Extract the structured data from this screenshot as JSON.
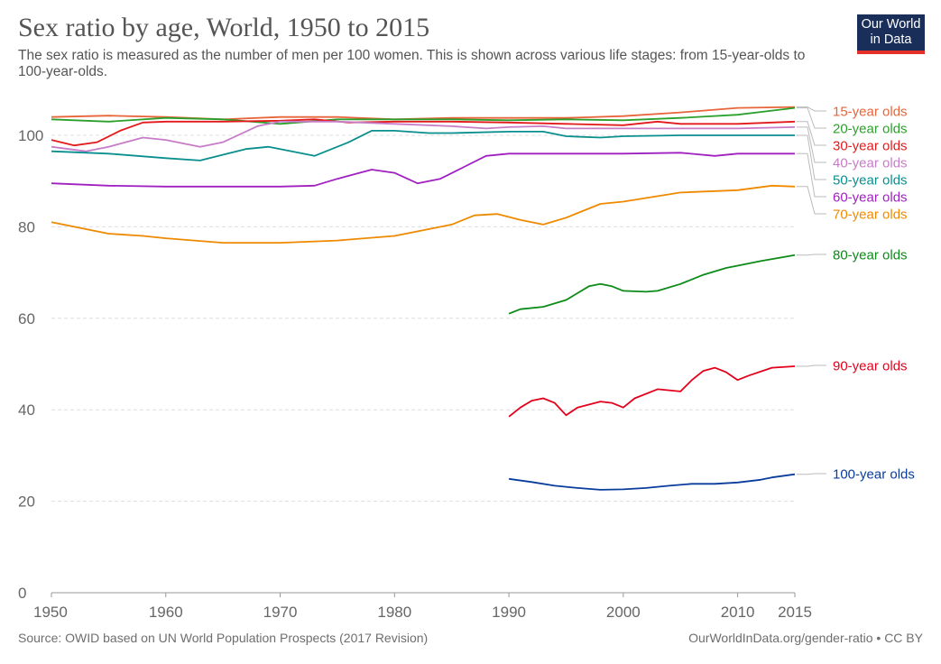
{
  "header": {
    "title": "Sex ratio by age, World, 1950 to 2015",
    "subtitle": "The sex ratio is measured as the number of men per 100 women. This is shown across various life stages: from 15-year-olds to 100-year-olds."
  },
  "logo": {
    "line1": "Our World",
    "line2": "in Data"
  },
  "footer": {
    "source": "Source: OWID based on UN World Population Prospects (2017 Revision)",
    "credit": "OurWorldInData.org/gender-ratio • CC BY"
  },
  "chart_data": {
    "type": "line",
    "xlim": [
      1950,
      2015
    ],
    "ylim": [
      0,
      106
    ],
    "grid": true,
    "x_ticks": [
      1950,
      1960,
      1970,
      1980,
      1990,
      2000,
      2010,
      2015
    ],
    "y_ticks": [
      0,
      20,
      40,
      60,
      80,
      100
    ],
    "legend": "right",
    "series": [
      {
        "name": "15-year olds",
        "color": "#e8643a",
        "x": [
          1950,
          1955,
          1960,
          1965,
          1970,
          1975,
          1980,
          1985,
          1990,
          1995,
          2000,
          2005,
          2010,
          2015
        ],
        "y": [
          104.0,
          104.3,
          104.0,
          103.5,
          104.0,
          104.0,
          103.5,
          103.8,
          103.8,
          103.8,
          104.2,
          105.0,
          106.0,
          106.2
        ]
      },
      {
        "name": "20-year olds",
        "color": "#2ca02c",
        "x": [
          1950,
          1955,
          1960,
          1965,
          1970,
          1975,
          1980,
          1985,
          1990,
          1995,
          2000,
          2005,
          2010,
          2015
        ],
        "y": [
          103.5,
          103.0,
          103.8,
          103.5,
          102.5,
          103.5,
          103.5,
          103.5,
          103.3,
          103.5,
          103.3,
          103.8,
          104.5,
          106.0
        ]
      },
      {
        "name": "30-year olds",
        "color": "#e31a1c",
        "x": [
          1950,
          1952,
          1954,
          1956,
          1958,
          1960,
          1965,
          1970,
          1973,
          1976,
          1980,
          1985,
          1990,
          1995,
          2000,
          2003,
          2005,
          2010,
          2015
        ],
        "y": [
          99.0,
          97.8,
          98.5,
          101.0,
          102.8,
          103.0,
          103.0,
          103.2,
          103.5,
          102.8,
          103.0,
          103.0,
          102.8,
          102.5,
          102.2,
          103.0,
          102.5,
          102.5,
          103.0
        ]
      },
      {
        "name": "40-year olds",
        "color": "#c77cc7",
        "x": [
          1950,
          1953,
          1955,
          1958,
          1960,
          1963,
          1965,
          1968,
          1970,
          1975,
          1980,
          1985,
          1988,
          1990,
          1993,
          1995,
          2000,
          2005,
          2010,
          2015
        ],
        "y": [
          97.5,
          96.5,
          97.5,
          99.5,
          99.0,
          97.5,
          98.5,
          102.0,
          103.0,
          103.0,
          102.5,
          102.0,
          101.5,
          101.8,
          102.0,
          101.5,
          101.5,
          101.5,
          101.5,
          101.8
        ]
      },
      {
        "name": "50-year olds",
        "color": "#0a8f8f",
        "x": [
          1950,
          1955,
          1960,
          1963,
          1967,
          1969,
          1973,
          1976,
          1978,
          1980,
          1983,
          1985,
          1990,
          1993,
          1995,
          1998,
          2000,
          2005,
          2010,
          2015
        ],
        "y": [
          96.5,
          96.0,
          95.0,
          94.5,
          97.0,
          97.5,
          95.5,
          98.5,
          101.0,
          101.0,
          100.5,
          100.5,
          100.8,
          100.8,
          99.8,
          99.5,
          99.8,
          100.0,
          100.0,
          100.0
        ]
      },
      {
        "name": "60-year olds",
        "color": "#a020c0",
        "x": [
          1950,
          1955,
          1960,
          1965,
          1970,
          1973,
          1975,
          1978,
          1980,
          1982,
          1984,
          1986,
          1988,
          1990,
          1995,
          2000,
          2005,
          2008,
          2010,
          2015
        ],
        "y": [
          89.5,
          89.0,
          88.8,
          88.8,
          88.8,
          89.0,
          90.5,
          92.5,
          91.8,
          89.5,
          90.5,
          93.0,
          95.5,
          96.0,
          96.0,
          96.0,
          96.2,
          95.5,
          96.0,
          96.0
        ]
      },
      {
        "name": "70-year olds",
        "color": "#ef8a00",
        "x": [
          1950,
          1955,
          1958,
          1960,
          1965,
          1970,
          1975,
          1980,
          1985,
          1987,
          1989,
          1991,
          1993,
          1995,
          1998,
          2000,
          2005,
          2010,
          2013,
          2015
        ],
        "y": [
          81.0,
          78.5,
          78.0,
          77.5,
          76.5,
          76.5,
          77.0,
          78.0,
          80.5,
          82.5,
          82.8,
          81.5,
          80.5,
          82.0,
          85.0,
          85.5,
          87.5,
          88.0,
          89.0,
          88.8
        ]
      },
      {
        "name": "80-year olds",
        "color": "#0d8a18",
        "x": [
          1990,
          1991,
          1993,
          1995,
          1997,
          1998,
          1999,
          2000,
          2002,
          2003,
          2005,
          2007,
          2009,
          2010,
          2012,
          2015
        ],
        "y": [
          61.0,
          62.0,
          62.5,
          64.0,
          67.0,
          67.5,
          67.0,
          66.0,
          65.8,
          66.0,
          67.5,
          69.5,
          71.0,
          71.5,
          72.5,
          73.8
        ]
      },
      {
        "name": "90-year olds",
        "color": "#e3001b",
        "x": [
          1990,
          1991,
          1992,
          1993,
          1994,
          1995,
          1996,
          1998,
          1999,
          2000,
          2001,
          2003,
          2005,
          2006,
          2007,
          2008,
          2009,
          2010,
          2011,
          2013,
          2015
        ],
        "y": [
          38.5,
          40.5,
          42.0,
          42.5,
          41.5,
          38.8,
          40.5,
          41.8,
          41.5,
          40.5,
          42.5,
          44.5,
          44.0,
          46.5,
          48.5,
          49.2,
          48.2,
          46.5,
          47.5,
          49.2,
          49.5
        ]
      },
      {
        "name": "100-year olds",
        "color": "#0a3c9c",
        "x": [
          1990,
          1992,
          1994,
          1996,
          1998,
          2000,
          2002,
          2004,
          2006,
          2008,
          2010,
          2012,
          2013,
          2015
        ],
        "y": [
          24.9,
          24.2,
          23.4,
          22.9,
          22.5,
          22.6,
          22.9,
          23.4,
          23.8,
          23.8,
          24.1,
          24.7,
          25.2,
          25.9
        ]
      }
    ]
  }
}
